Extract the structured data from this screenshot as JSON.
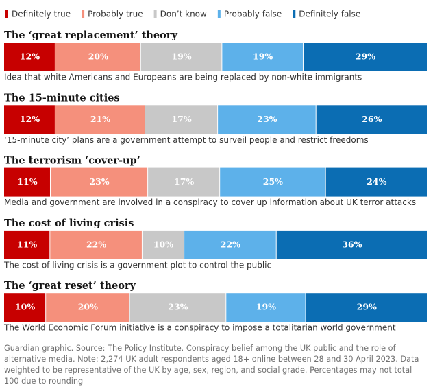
{
  "chart_data": {
    "type": "stacked-bar-100",
    "categories": [
      "The ‘great replacement’ theory",
      "The 15-minute cities",
      "The terrorism ‘cover-up’",
      "The cost of living crisis",
      "The ‘great reset’ theory"
    ],
    "descriptions": [
      "Idea that white Americans and Europeans are being replaced by non-white immigrants",
      "‘15-minute city’ plans are a government attempt to surveil people and restrict freedoms",
      "Media and government are involved in a conspiracy to cover up information about UK terror attacks",
      "The cost of living crisis is a government plot to control the public",
      "The World Economic Forum initiative is a conspiracy to impose a totalitarian world government"
    ],
    "series": [
      {
        "name": "Definitely true",
        "color": "#c70000",
        "values": [
          12,
          12,
          11,
          11,
          10
        ],
        "value_labels": [
          "12%",
          "12%",
          "11%",
          "11%",
          "10%"
        ]
      },
      {
        "name": "Probably true",
        "color": "#f5907c",
        "values": [
          20,
          21,
          23,
          22,
          20
        ],
        "value_labels": [
          "20%",
          "21%",
          "23%",
          "22%",
          "20%"
        ]
      },
      {
        "name": "Don’t know",
        "color": "#c8c8c8",
        "values": [
          19,
          17,
          17,
          10,
          23
        ],
        "value_labels": [
          "19%",
          "17%",
          "17%",
          "10%",
          "23%"
        ]
      },
      {
        "name": "Probably false",
        "color": "#5db1ea",
        "values": [
          19,
          23,
          25,
          22,
          19
        ],
        "value_labels": [
          "19%",
          "23%",
          "25%",
          "22%",
          "19%"
        ]
      },
      {
        "name": "Definitely false",
        "color": "#0b6db3",
        "values": [
          29,
          26,
          24,
          36,
          29
        ],
        "value_labels": [
          "29%",
          "26%",
          "24%",
          "36%",
          "29%"
        ]
      }
    ],
    "note": "Guardian graphic. Source: The Policy Institute. Conspiracy belief among the UK public and the role of alternative media. Note: 2,274 UK adult respondents aged 18+ online between 28 and 30 April 2023. Data weighted to be representative of the UK by age, sex, region, and social grade. Percentages may not total 100 due to rounding"
  }
}
